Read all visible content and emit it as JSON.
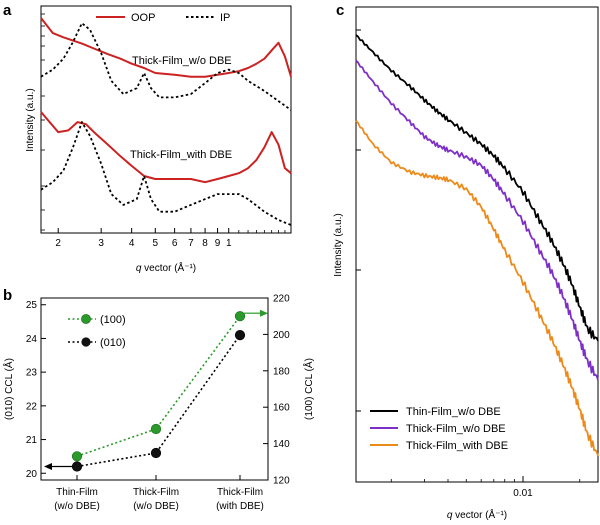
{
  "chart_data": [
    {
      "panel": "a",
      "type": "line",
      "xscale": "log",
      "yscale": "log",
      "xlabel_var": "q",
      "xlabel_rest": " vector (Å⁻¹)",
      "ylabel": "Intensity (a.u.)",
      "xlim": [
        0.17,
        1.8
      ],
      "x_tick_labels": [
        {
          "x": 0.2,
          "label": "2"
        },
        {
          "x": 0.3,
          "label": "3"
        },
        {
          "x": 0.4,
          "label": "4"
        },
        {
          "x": 0.5,
          "label": "5"
        },
        {
          "x": 0.6,
          "label": "6"
        },
        {
          "x": 0.7,
          "label": "7"
        },
        {
          "x": 0.8,
          "label": "8"
        },
        {
          "x": 0.9,
          "label": "9"
        },
        {
          "x": 1.0,
          "label": "1"
        }
      ],
      "legend": [
        {
          "name": "OOP",
          "color": "#cc2222",
          "dash": "solid"
        },
        {
          "name": "IP",
          "color": "#000000",
          "dash": "dotted"
        }
      ],
      "annotations": [
        "Thick-Film_w/o DBE",
        "Thick-Film_with DBE"
      ],
      "groups": [
        {
          "name": "Thick-Film_w/o DBE",
          "series": [
            {
              "name": "OOP",
              "color": "#cc2222",
              "dash": "solid",
              "x": [
                0.17,
                0.19,
                0.21,
                0.23,
                0.25,
                0.28,
                0.32,
                0.36,
                0.4,
                0.45,
                0.5,
                0.6,
                0.7,
                0.8,
                0.9,
                1.0,
                1.1,
                1.2,
                1.3,
                1.4,
                1.5,
                1.6,
                1.7,
                1.8
              ],
              "y": [
                0.95,
                0.62,
                0.55,
                0.5,
                0.46,
                0.4,
                0.34,
                0.3,
                0.26,
                0.23,
                0.2,
                0.19,
                0.18,
                0.18,
                0.19,
                0.2,
                0.21,
                0.23,
                0.26,
                0.3,
                0.38,
                0.47,
                0.32,
                0.18
              ]
            },
            {
              "name": "IP",
              "color": "#000000",
              "dash": "dotted",
              "x": [
                0.17,
                0.19,
                0.21,
                0.23,
                0.25,
                0.27,
                0.3,
                0.33,
                0.37,
                0.42,
                0.45,
                0.48,
                0.52,
                0.6,
                0.7,
                0.8,
                0.9,
                1.0,
                1.1,
                1.2,
                1.4,
                1.6,
                1.8
              ],
              "y": [
                0.18,
                0.22,
                0.3,
                0.48,
                0.82,
                0.68,
                0.35,
                0.16,
                0.11,
                0.13,
                0.2,
                0.13,
                0.1,
                0.1,
                0.11,
                0.15,
                0.2,
                0.22,
                0.2,
                0.16,
                0.12,
                0.09,
                0.07
              ]
            }
          ]
        },
        {
          "name": "Thick-Film_with DBE",
          "series": [
            {
              "name": "OOP",
              "color": "#cc2222",
              "dash": "solid",
              "x": [
                0.17,
                0.2,
                0.22,
                0.24,
                0.26,
                0.28,
                0.32,
                0.36,
                0.4,
                0.45,
                0.5,
                0.55,
                0.6,
                0.7,
                0.8,
                0.9,
                1.0,
                1.1,
                1.2,
                1.3,
                1.4,
                1.5,
                1.6,
                1.7,
                1.8
              ],
              "y": [
                0.72,
                0.42,
                0.44,
                0.55,
                0.52,
                0.42,
                0.3,
                0.22,
                0.17,
                0.13,
                0.12,
                0.12,
                0.12,
                0.12,
                0.11,
                0.12,
                0.13,
                0.14,
                0.16,
                0.2,
                0.28,
                0.42,
                0.3,
                0.16,
                0.14
              ]
            },
            {
              "name": "IP",
              "color": "#000000",
              "dash": "dotted",
              "x": [
                0.17,
                0.19,
                0.21,
                0.23,
                0.25,
                0.27,
                0.3,
                0.33,
                0.37,
                0.42,
                0.45,
                0.48,
                0.52,
                0.6,
                0.7,
                0.8,
                0.9,
                1.0,
                1.1,
                1.2,
                1.4,
                1.6,
                1.8
              ],
              "y": [
                0.09,
                0.11,
                0.15,
                0.28,
                0.55,
                0.38,
                0.18,
                0.08,
                0.06,
                0.07,
                0.13,
                0.07,
                0.05,
                0.05,
                0.06,
                0.07,
                0.08,
                0.08,
                0.08,
                0.07,
                0.05,
                0.04,
                0.035
              ]
            }
          ]
        }
      ]
    },
    {
      "panel": "b",
      "type": "line",
      "categories": [
        "Thin-Film\n(w/o DBE)",
        "Thick-Film\n(w/o DBE)",
        "Thick-Film\n(with DBE)"
      ],
      "category_lines": [
        [
          "Thin-Film",
          "(w/o DBE)"
        ],
        [
          "Thick-Film",
          "(w/o DBE)"
        ],
        [
          "Thick-Film",
          "(with DBE)"
        ]
      ],
      "ylabel_left": "(010) CCL (Å)",
      "ylabel_right": "(100) CCL (Å)",
      "ylim_left": [
        19.8,
        25.2
      ],
      "ylim_right": [
        120,
        220
      ],
      "yticks_left": [
        20,
        21,
        22,
        23,
        24,
        25
      ],
      "yticks_right": [
        120,
        140,
        160,
        180,
        200,
        220
      ],
      "series": [
        {
          "name": "(100)",
          "axis": "right",
          "color": "#2a9a2a",
          "values": [
            133,
            148,
            210
          ]
        },
        {
          "name": "(010)",
          "axis": "left",
          "color": "#000000",
          "values": [
            20.2,
            20.6,
            24.1
          ]
        }
      ]
    },
    {
      "panel": "c",
      "type": "line",
      "xscale": "log",
      "yscale": "log",
      "xlabel_var": "q",
      "xlabel_rest": " vector (Å⁻¹)",
      "ylabel": "Intensity (a.u.)",
      "xlim": [
        0.0013,
        0.025
      ],
      "x_tick_labels": [
        {
          "x": 0.01,
          "label": "0.01"
        }
      ],
      "series": [
        {
          "name": "Thin-Film_w/o DBE",
          "color": "#000000",
          "x": [
            0.0013,
            0.0016,
            0.002,
            0.0025,
            0.003,
            0.0035,
            0.004,
            0.005,
            0.006,
            0.007,
            0.008,
            0.01,
            0.012,
            0.014,
            0.016,
            0.018,
            0.02,
            0.022,
            0.025
          ],
          "y": [
            60,
            40,
            26,
            18,
            13,
            10,
            8.2,
            6,
            4.6,
            3.5,
            2.6,
            1.5,
            0.82,
            0.5,
            0.3,
            0.18,
            0.1,
            0.06,
            0.045
          ]
        },
        {
          "name": "Thick-Film_w/o DBE",
          "color": "#7e2fc8",
          "x": [
            0.0013,
            0.0016,
            0.002,
            0.0025,
            0.003,
            0.0035,
            0.004,
            0.005,
            0.006,
            0.007,
            0.008,
            0.01,
            0.012,
            0.014,
            0.016,
            0.018,
            0.02,
            0.022,
            0.025
          ],
          "y": [
            33,
            20,
            12,
            7.8,
            5.5,
            4.5,
            4,
            3.4,
            2.8,
            2,
            1.4,
            0.75,
            0.4,
            0.24,
            0.14,
            0.08,
            0.045,
            0.028,
            0.018
          ]
        },
        {
          "name": "Thick-Film_with DBE",
          "color": "#ee8a1a",
          "x": [
            0.0013,
            0.0016,
            0.002,
            0.0025,
            0.003,
            0.0035,
            0.004,
            0.005,
            0.006,
            0.007,
            0.008,
            0.01,
            0.012,
            0.014,
            0.016,
            0.018,
            0.02,
            0.022,
            0.025
          ],
          "y": [
            8,
            4.6,
            3,
            2.4,
            2.2,
            2.1,
            2,
            1.6,
            1.05,
            0.62,
            0.38,
            0.18,
            0.09,
            0.05,
            0.028,
            0.016,
            0.009,
            0.005,
            0.003
          ]
        }
      ]
    }
  ]
}
